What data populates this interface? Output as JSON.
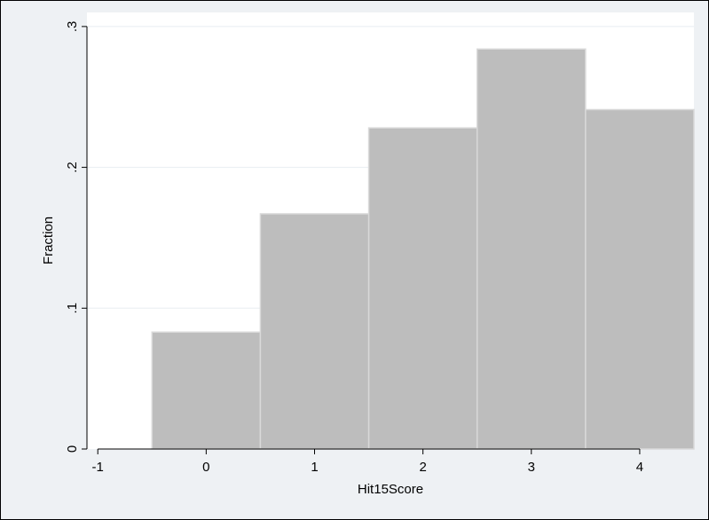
{
  "chart_data": {
    "type": "bar",
    "title": "",
    "xlabel": "Hit15Score",
    "ylabel": "Fraction",
    "bin_width": 1,
    "x": [
      0,
      1,
      2,
      3,
      4
    ],
    "values": [
      0.083,
      0.167,
      0.228,
      0.284,
      0.241
    ],
    "xlim": [
      -1.1,
      4.5
    ],
    "ylim": [
      0,
      0.31
    ],
    "xticks": [
      -1,
      0,
      1,
      2,
      3,
      4
    ],
    "xtick_labels": [
      "-1",
      "0",
      "1",
      "2",
      "3",
      "4"
    ],
    "yticks": [
      0,
      0.1,
      0.2,
      0.3
    ],
    "ytick_labels": [
      "0",
      ".1",
      ".2",
      ".3"
    ],
    "grid": true,
    "colors": {
      "bar_fill": "#bdbdbd",
      "bar_edge": "#d9d9d9",
      "plot_background": "#ffffff",
      "outer_background": "#eef1f4",
      "grid": "#e8edf1"
    }
  }
}
